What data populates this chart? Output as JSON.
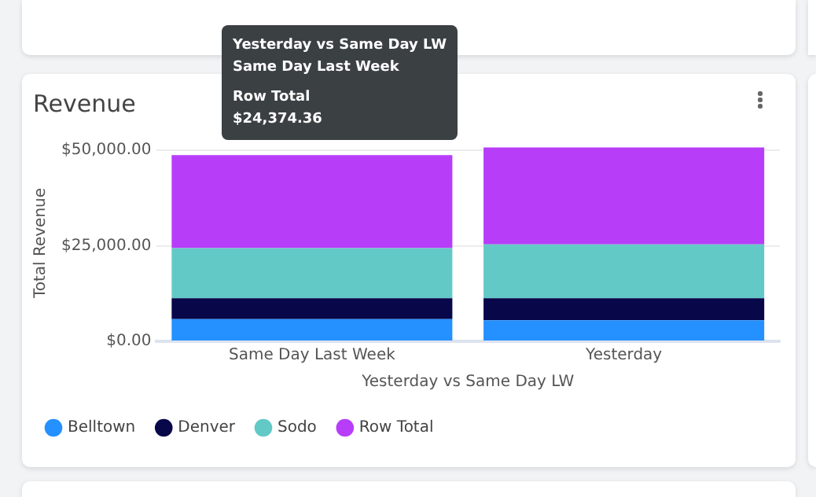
{
  "chart_data": {
    "type": "bar",
    "title": "Revenue",
    "xlabel": "Yesterday vs Same Day LW",
    "ylabel": "Total Revenue",
    "categories": [
      "Same Day Last Week",
      "Yesterday"
    ],
    "stacked": true,
    "grid": "y",
    "legend": "bottom",
    "series": [
      {
        "name": "Belltown",
        "color": "#2590ff",
        "values": [
          5800,
          5500
        ]
      },
      {
        "name": "Denver",
        "color": "#07074a",
        "values": [
          5500,
          5800
        ]
      },
      {
        "name": "Sodo",
        "color": "#63c9c6",
        "values": [
          13100,
          14100
        ]
      },
      {
        "name": "Row Total",
        "color": "#b83df9",
        "values": [
          24374.36,
          25400
        ]
      }
    ],
    "ylim": [
      0,
      51500
    ],
    "yticks": [
      {
        "value": 0,
        "label": "$0.00"
      },
      {
        "value": 25000,
        "label": "$25,000.00"
      },
      {
        "value": 50000,
        "label": "$50,000.00"
      }
    ],
    "annotations": [
      "Yesterday vs Same Day LW",
      "Same Day Last Week",
      "Row Total",
      "$24,374.36"
    ]
  }
}
